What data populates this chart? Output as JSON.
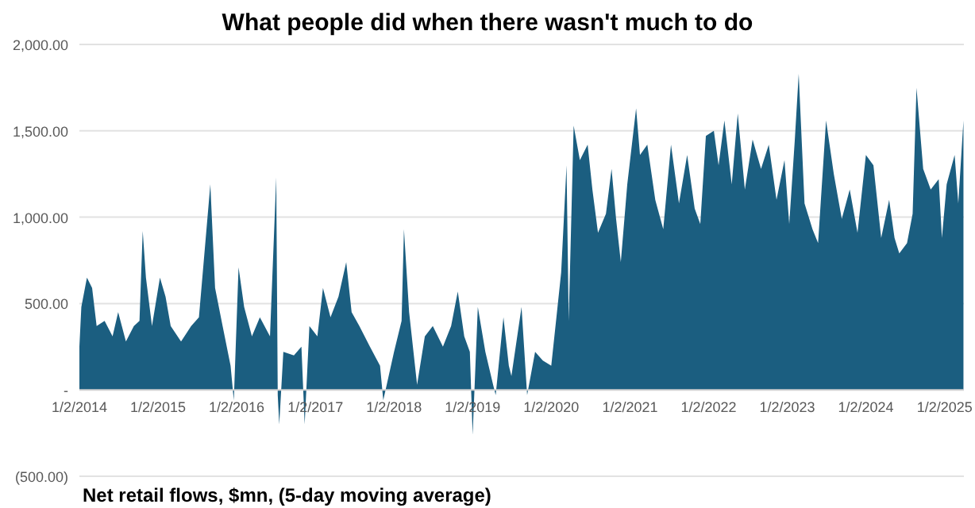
{
  "chart_data": {
    "type": "area",
    "title": "What people did when there wasn't much to do",
    "xlabel": "Net retail flows, $mn, (5-day moving average)",
    "xlim": [
      "2014-01-02",
      "2025-04-01"
    ],
    "xticks": [
      {
        "value": "2014-01-02",
        "label": "1/2/2014"
      },
      {
        "value": "2015-01-02",
        "label": "1/2/2015"
      },
      {
        "value": "2016-01-02",
        "label": "1/2/2016"
      },
      {
        "value": "2017-01-02",
        "label": "1/2/2017"
      },
      {
        "value": "2018-01-02",
        "label": "1/2/2018"
      },
      {
        "value": "2019-01-02",
        "label": "1/2/2019"
      },
      {
        "value": "2020-01-02",
        "label": "1/2/2020"
      },
      {
        "value": "2021-01-02",
        "label": "1/2/2021"
      },
      {
        "value": "2022-01-02",
        "label": "1/2/2022"
      },
      {
        "value": "2023-01-02",
        "label": "1/2/2023"
      },
      {
        "value": "2024-01-02",
        "label": "1/2/2024"
      },
      {
        "value": "2025-01-02",
        "label": "1/2/2025"
      }
    ],
    "ylim": [
      -500,
      2000
    ],
    "yticks": [
      {
        "value": -500,
        "label": "(500.00)"
      },
      {
        "value": 0,
        "label": "-"
      },
      {
        "value": 500,
        "label": "500.00"
      },
      {
        "value": 1000,
        "label": "1,000.00"
      },
      {
        "value": 1500,
        "label": "1,500.00"
      },
      {
        "value": 2000,
        "label": "2,000.00"
      }
    ],
    "grid": "y",
    "series": [
      {
        "color": "#1b5e80",
        "x": [
          "2014-01-02",
          "2014-01-11",
          "2014-02-06",
          "2014-03-02",
          "2014-03-23",
          "2014-04-29",
          "2014-06-05",
          "2014-07-01",
          "2014-08-06",
          "2014-09-12",
          "2014-10-08",
          "2014-10-23",
          "2014-11-07",
          "2014-12-05",
          "2015-01-11",
          "2015-02-06",
          "2015-03-02",
          "2015-04-19",
          "2015-06-05",
          "2015-07-11",
          "2015-09-02",
          "2015-09-24",
          "2015-10-29",
          "2015-12-05",
          "2015-12-20",
          "2016-01-11",
          "2016-02-06",
          "2016-03-13",
          "2016-04-19",
          "2016-06-05",
          "2016-07-04",
          "2016-07-11",
          "2016-07-18",
          "2016-08-06",
          "2016-09-24",
          "2016-10-29",
          "2016-11-13",
          "2016-12-05",
          "2017-01-11",
          "2017-02-06",
          "2017-03-13",
          "2017-04-19",
          "2017-05-25",
          "2017-06-19",
          "2017-07-25",
          "2017-09-12",
          "2017-10-29",
          "2017-11-13",
          "2018-01-02",
          "2018-02-06",
          "2018-02-17",
          "2018-03-13",
          "2018-04-19",
          "2018-05-25",
          "2018-07-01",
          "2018-08-17",
          "2018-09-24",
          "2018-10-25",
          "2018-11-24",
          "2018-12-20",
          "2019-01-02",
          "2019-01-26",
          "2019-03-02",
          "2019-04-07",
          "2019-04-19",
          "2019-05-25",
          "2019-06-19",
          "2019-07-01",
          "2019-08-17",
          "2019-09-12",
          "2019-10-19",
          "2019-11-24",
          "2020-01-02",
          "2020-01-26",
          "2020-02-17",
          "2020-03-13",
          "2020-03-23",
          "2020-04-15",
          "2020-05-14",
          "2020-06-19",
          "2020-07-11",
          "2020-08-06",
          "2020-09-12",
          "2020-10-08",
          "2020-10-29",
          "2020-11-20",
          "2020-12-20",
          "2021-01-30",
          "2021-02-17",
          "2021-03-23",
          "2021-04-29",
          "2021-06-05",
          "2021-07-11",
          "2021-08-17",
          "2021-09-24",
          "2021-10-29",
          "2021-11-24",
          "2021-12-20",
          "2022-01-26",
          "2022-02-17",
          "2022-03-16",
          "2022-04-19",
          "2022-05-17",
          "2022-06-19",
          "2022-07-25",
          "2022-09-02",
          "2022-10-08",
          "2022-11-13",
          "2022-12-20",
          "2023-01-11",
          "2023-02-06",
          "2023-02-24",
          "2023-03-23",
          "2023-04-29",
          "2023-05-25",
          "2023-07-01",
          "2023-08-06",
          "2023-09-12",
          "2023-10-19",
          "2023-11-24",
          "2024-01-02",
          "2024-02-06",
          "2024-03-13",
          "2024-04-19",
          "2024-05-14",
          "2024-06-05",
          "2024-07-11",
          "2024-08-06",
          "2024-08-24",
          "2024-09-24",
          "2024-10-29",
          "2024-12-05",
          "2024-12-20",
          "2025-01-11",
          "2025-02-17",
          "2025-03-06",
          "2025-03-30"
        ],
        "values": [
          250,
          480,
          650,
          590,
          370,
          400,
          310,
          450,
          280,
          370,
          400,
          920,
          650,
          370,
          650,
          540,
          370,
          280,
          370,
          420,
          1190,
          590,
          370,
          140,
          -60,
          710,
          480,
          310,
          420,
          310,
          1230,
          -30,
          -200,
          220,
          200,
          250,
          -200,
          370,
          310,
          590,
          420,
          540,
          740,
          450,
          370,
          250,
          140,
          -60,
          220,
          400,
          930,
          450,
          30,
          310,
          370,
          250,
          370,
          570,
          310,
          220,
          -260,
          480,
          220,
          30,
          -30,
          420,
          140,
          80,
          480,
          -30,
          220,
          170,
          140,
          420,
          680,
          1300,
          400,
          1530,
          1330,
          1420,
          1160,
          910,
          1020,
          1280,
          990,
          740,
          1190,
          1630,
          1360,
          1420,
          1100,
          930,
          1420,
          1080,
          1360,
          1050,
          960,
          1470,
          1500,
          1300,
          1560,
          1190,
          1600,
          1160,
          1450,
          1280,
          1420,
          1100,
          1330,
          960,
          1450,
          1830,
          1080,
          930,
          850,
          1560,
          1250,
          990,
          1160,
          910,
          1360,
          1300,
          880,
          1100,
          880,
          790,
          850,
          1020,
          1750,
          1280,
          1160,
          1220,
          880,
          1190,
          1360,
          1080,
          1560
        ]
      }
    ]
  }
}
